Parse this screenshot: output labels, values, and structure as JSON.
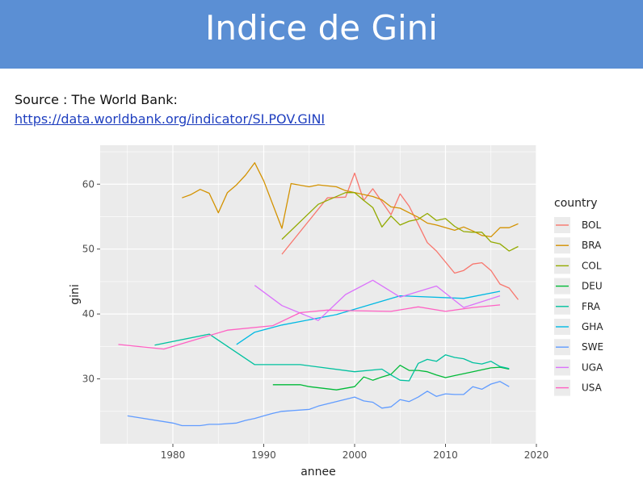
{
  "slide": {
    "title": "Indice de Gini",
    "source_label": "Source : The World Bank:",
    "source_link": "https://data.worldbank.org/indicator/SI.POV.GINI"
  },
  "colors": {
    "banner": "#5b8fd4",
    "panel": "#ebebeb",
    "grid": "#ffffff"
  },
  "chart_data": {
    "type": "line",
    "title": "",
    "xlabel": "annee",
    "ylabel": "gini",
    "legend_title": "country",
    "legend_position": "right",
    "grid": true,
    "xlim": [
      1972,
      2020
    ],
    "ylim": [
      20,
      66
    ],
    "x_ticks": [
      1980,
      1990,
      2000,
      2010,
      2020
    ],
    "y_ticks": [
      30,
      40,
      50,
      60
    ],
    "series": [
      {
        "name": "BOL",
        "color": "#F8766D",
        "points": [
          [
            1992,
            49.2
          ],
          [
            1997,
            57.9
          ],
          [
            1999,
            58.0
          ],
          [
            2000,
            61.7
          ],
          [
            2001,
            57.5
          ],
          [
            2002,
            59.3
          ],
          [
            2004,
            55.3
          ],
          [
            2005,
            58.5
          ],
          [
            2006,
            56.6
          ],
          [
            2007,
            53.8
          ],
          [
            2008,
            51.0
          ],
          [
            2009,
            49.7
          ],
          [
            2011,
            46.3
          ],
          [
            2012,
            46.7
          ],
          [
            2013,
            47.7
          ],
          [
            2014,
            47.9
          ],
          [
            2015,
            46.7
          ],
          [
            2016,
            44.6
          ],
          [
            2017,
            44.0
          ],
          [
            2018,
            42.2
          ]
        ]
      },
      {
        "name": "BRA",
        "color": "#D39200",
        "points": [
          [
            1981,
            57.9
          ],
          [
            1982,
            58.4
          ],
          [
            1983,
            59.2
          ],
          [
            1984,
            58.6
          ],
          [
            1985,
            55.6
          ],
          [
            1986,
            58.7
          ],
          [
            1987,
            59.9
          ],
          [
            1988,
            61.4
          ],
          [
            1989,
            63.3
          ],
          [
            1990,
            60.5
          ],
          [
            1992,
            53.2
          ],
          [
            1993,
            60.1
          ],
          [
            1995,
            59.6
          ],
          [
            1996,
            59.9
          ],
          [
            1998,
            59.6
          ],
          [
            1999,
            59.0
          ],
          [
            2001,
            58.4
          ],
          [
            2002,
            58.1
          ],
          [
            2003,
            57.6
          ],
          [
            2004,
            56.5
          ],
          [
            2005,
            56.3
          ],
          [
            2006,
            55.6
          ],
          [
            2007,
            54.9
          ],
          [
            2008,
            54.0
          ],
          [
            2009,
            53.7
          ],
          [
            2011,
            52.9
          ],
          [
            2012,
            53.4
          ],
          [
            2013,
            52.8
          ],
          [
            2014,
            52.1
          ],
          [
            2015,
            51.9
          ],
          [
            2016,
            53.3
          ],
          [
            2017,
            53.3
          ],
          [
            2018,
            53.9
          ]
        ]
      },
      {
        "name": "COL",
        "color": "#93AA00",
        "points": [
          [
            1992,
            51.5
          ],
          [
            1996,
            56.9
          ],
          [
            1999,
            58.7
          ],
          [
            2000,
            58.7
          ],
          [
            2001,
            57.5
          ],
          [
            2002,
            56.4
          ],
          [
            2003,
            53.4
          ],
          [
            2004,
            55.1
          ],
          [
            2005,
            53.7
          ],
          [
            2006,
            54.3
          ],
          [
            2007,
            54.6
          ],
          [
            2008,
            55.5
          ],
          [
            2009,
            54.4
          ],
          [
            2010,
            54.7
          ],
          [
            2011,
            53.5
          ],
          [
            2012,
            52.7
          ],
          [
            2013,
            52.6
          ],
          [
            2014,
            52.6
          ],
          [
            2015,
            51.1
          ],
          [
            2016,
            50.8
          ],
          [
            2017,
            49.7
          ],
          [
            2018,
            50.4
          ]
        ]
      },
      {
        "name": "DEU",
        "color": "#00BA38",
        "points": [
          [
            1991,
            29.1
          ],
          [
            1994,
            29.1
          ],
          [
            1995,
            28.8
          ],
          [
            1998,
            28.3
          ],
          [
            2000,
            28.8
          ],
          [
            2001,
            30.3
          ],
          [
            2002,
            29.8
          ],
          [
            2003,
            30.3
          ],
          [
            2004,
            30.7
          ],
          [
            2005,
            32.1
          ],
          [
            2006,
            31.3
          ],
          [
            2007,
            31.3
          ],
          [
            2008,
            31.1
          ],
          [
            2009,
            30.6
          ],
          [
            2010,
            30.2
          ],
          [
            2011,
            30.5
          ],
          [
            2013,
            31.1
          ],
          [
            2015,
            31.7
          ],
          [
            2016,
            31.8
          ],
          [
            2017,
            31.5
          ]
        ]
      },
      {
        "name": "FRA",
        "color": "#00C19F",
        "points": [
          [
            1978,
            35.2
          ],
          [
            1984,
            36.9
          ],
          [
            1989,
            32.2
          ],
          [
            1994,
            32.2
          ],
          [
            2000,
            31.1
          ],
          [
            2003,
            31.5
          ],
          [
            2004,
            30.6
          ],
          [
            2005,
            29.8
          ],
          [
            2006,
            29.7
          ],
          [
            2007,
            32.4
          ],
          [
            2008,
            33.0
          ],
          [
            2009,
            32.7
          ],
          [
            2010,
            33.7
          ],
          [
            2011,
            33.3
          ],
          [
            2012,
            33.1
          ],
          [
            2013,
            32.5
          ],
          [
            2014,
            32.3
          ],
          [
            2015,
            32.7
          ],
          [
            2016,
            31.9
          ],
          [
            2017,
            31.6
          ]
        ]
      },
      {
        "name": "GHA",
        "color": "#00B9E3",
        "points": [
          [
            1987,
            35.3
          ],
          [
            1989,
            37.2
          ],
          [
            1992,
            38.3
          ],
          [
            1998,
            39.9
          ],
          [
            2005,
            42.8
          ],
          [
            2012,
            42.4
          ],
          [
            2016,
            43.5
          ]
        ]
      },
      {
        "name": "SWE",
        "color": "#619CFF",
        "points": [
          [
            1975,
            24.3
          ],
          [
            1980,
            23.2
          ],
          [
            1981,
            22.8
          ],
          [
            1983,
            22.8
          ],
          [
            1984,
            23.0
          ],
          [
            1985,
            23.0
          ],
          [
            1987,
            23.2
          ],
          [
            1988,
            23.6
          ],
          [
            1989,
            23.9
          ],
          [
            1990,
            24.3
          ],
          [
            1991,
            24.7
          ],
          [
            1992,
            25.0
          ],
          [
            1995,
            25.3
          ],
          [
            1996,
            25.8
          ],
          [
            2000,
            27.2
          ],
          [
            2001,
            26.6
          ],
          [
            2002,
            26.4
          ],
          [
            2003,
            25.5
          ],
          [
            2004,
            25.7
          ],
          [
            2005,
            26.8
          ],
          [
            2006,
            26.5
          ],
          [
            2007,
            27.2
          ],
          [
            2008,
            28.1
          ],
          [
            2009,
            27.3
          ],
          [
            2010,
            27.7
          ],
          [
            2011,
            27.6
          ],
          [
            2012,
            27.6
          ],
          [
            2013,
            28.8
          ],
          [
            2014,
            28.4
          ],
          [
            2015,
            29.2
          ],
          [
            2016,
            29.6
          ],
          [
            2017,
            28.8
          ]
        ]
      },
      {
        "name": "UGA",
        "color": "#DB72FB",
        "points": [
          [
            1989,
            44.4
          ],
          [
            1992,
            41.3
          ],
          [
            1996,
            39.0
          ],
          [
            1999,
            43.0
          ],
          [
            2002,
            45.2
          ],
          [
            2005,
            42.6
          ],
          [
            2009,
            44.3
          ],
          [
            2012,
            41.0
          ],
          [
            2016,
            42.8
          ]
        ]
      },
      {
        "name": "USA",
        "color": "#FF61C3",
        "points": [
          [
            1974,
            35.3
          ],
          [
            1979,
            34.6
          ],
          [
            1986,
            37.5
          ],
          [
            1991,
            38.2
          ],
          [
            1994,
            40.2
          ],
          [
            1997,
            40.6
          ],
          [
            2000,
            40.5
          ],
          [
            2004,
            40.4
          ],
          [
            2007,
            41.1
          ],
          [
            2010,
            40.4
          ],
          [
            2013,
            41.0
          ],
          [
            2016,
            41.4
          ]
        ]
      }
    ]
  }
}
